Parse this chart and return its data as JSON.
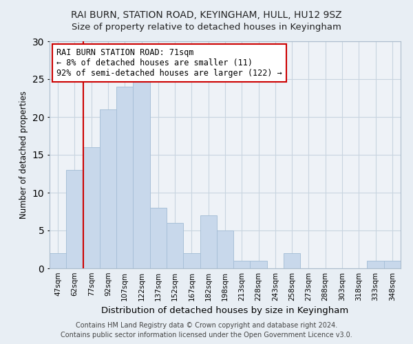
{
  "title": "RAI BURN, STATION ROAD, KEYINGHAM, HULL, HU12 9SZ",
  "subtitle": "Size of property relative to detached houses in Keyingham",
  "xlabel": "Distribution of detached houses by size in Keyingham",
  "ylabel": "Number of detached properties",
  "bar_color": "#c8d8eb",
  "bar_edge_color": "#a8c0d8",
  "bin_labels": [
    "47sqm",
    "62sqm",
    "77sqm",
    "92sqm",
    "107sqm",
    "122sqm",
    "137sqm",
    "152sqm",
    "167sqm",
    "182sqm",
    "198sqm",
    "213sqm",
    "228sqm",
    "243sqm",
    "258sqm",
    "273sqm",
    "288sqm",
    "303sqm",
    "318sqm",
    "333sqm",
    "348sqm"
  ],
  "values": [
    2,
    13,
    16,
    21,
    24,
    25,
    8,
    6,
    2,
    7,
    5,
    1,
    1,
    0,
    2,
    0,
    0,
    0,
    0,
    1,
    1
  ],
  "ylim": [
    0,
    30
  ],
  "yticks": [
    0,
    5,
    10,
    15,
    20,
    25,
    30
  ],
  "property_line_x": 1.5,
  "annotation_text": "RAI BURN STATION ROAD: 71sqm\n← 8% of detached houses are smaller (11)\n92% of semi-detached houses are larger (122) →",
  "annotation_box_color": "#ffffff",
  "annotation_box_edge": "#cc0000",
  "property_line_color": "#cc0000",
  "footer_line1": "Contains HM Land Registry data © Crown copyright and database right 2024.",
  "footer_line2": "Contains public sector information licensed under the Open Government Licence v3.0.",
  "background_color": "#e8eef4",
  "plot_bg_color": "#eef2f7",
  "grid_color": "#c8d4e0",
  "title_fontsize": 10,
  "subtitle_fontsize": 9.5,
  "xlabel_fontsize": 9.5,
  "ylabel_fontsize": 8.5,
  "tick_fontsize": 7.5,
  "footer_fontsize": 7,
  "annotation_fontsize": 8.5
}
